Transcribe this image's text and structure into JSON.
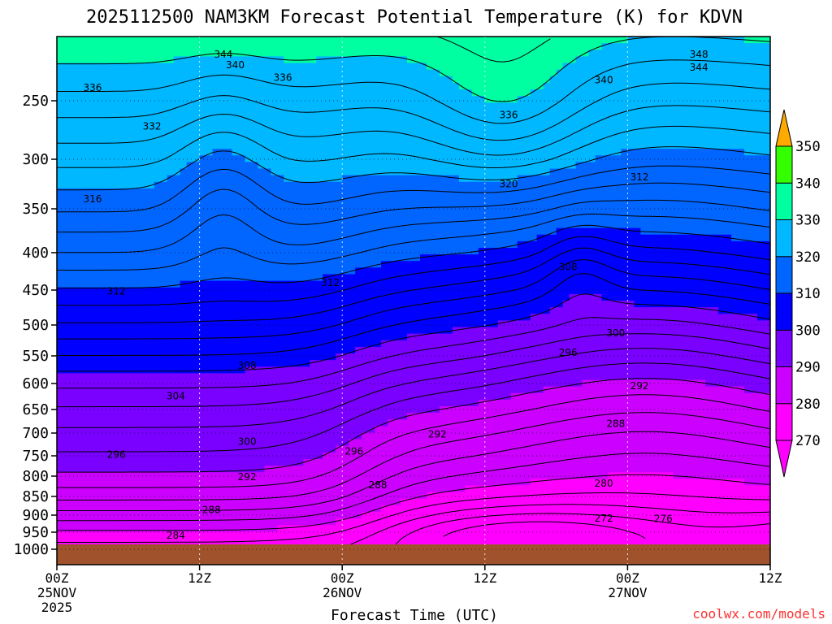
{
  "chart_data": {
    "type": "contour",
    "title": "2025112500 NAM3KM Forecast Potential Temperature (K) for KDVN",
    "xlabel": "Forecast Time (UTC)",
    "ylabel": "",
    "x_hours": [
      0,
      12,
      24,
      36,
      48,
      60
    ],
    "x_tick_labels": [
      [
        "00Z",
        "25NOV",
        "2025"
      ],
      [
        "12Z"
      ],
      [
        "00Z",
        "26NOV"
      ],
      [
        "12Z"
      ],
      [
        "00Z",
        "27NOV"
      ],
      [
        "12Z"
      ]
    ],
    "y_levels_hPa": [
      250,
      300,
      350,
      400,
      450,
      500,
      550,
      600,
      650,
      700,
      750,
      800,
      850,
      900,
      950,
      1000
    ],
    "y_tick_labels": [
      "250",
      "300",
      "350",
      "400",
      "450",
      "500",
      "550",
      "600",
      "650",
      "700",
      "750",
      "800",
      "850",
      "900",
      "950",
      "1000"
    ],
    "ylim_hPa": [
      1050,
      200
    ],
    "grid": true,
    "colorbar": {
      "bounds": [
        270,
        280,
        290,
        300,
        310,
        320,
        330,
        340,
        350
      ],
      "labels": [
        "350",
        "340",
        "330",
        "320",
        "310",
        "300",
        "290",
        "280",
        "270"
      ],
      "colors": [
        "#ff00ff",
        "#cc00ff",
        "#7a00ff",
        "#0000ff",
        "#0066ff",
        "#00b8ff",
        "#00ffa0",
        "#33ff00",
        "#ffff00"
      ],
      "over_color": "#ffaa00",
      "under_color": "#ff00ff"
    },
    "ground_color": "#a0522d",
    "contour_labels": [
      {
        "text": "344",
        "hour": 14,
        "p": 214
      },
      {
        "text": "348",
        "hour": 54,
        "p": 214
      },
      {
        "text": "340",
        "hour": 15,
        "p": 222
      },
      {
        "text": "344",
        "hour": 54,
        "p": 224
      },
      {
        "text": "336",
        "hour": 19,
        "p": 232
      },
      {
        "text": "340",
        "hour": 46,
        "p": 234
      },
      {
        "text": "336",
        "hour": 3,
        "p": 240
      },
      {
        "text": "336",
        "hour": 38,
        "p": 262
      },
      {
        "text": "332",
        "hour": 8,
        "p": 272
      },
      {
        "text": "320",
        "hour": 38,
        "p": 325
      },
      {
        "text": "312",
        "hour": 49,
        "p": 318
      },
      {
        "text": "316",
        "hour": 3,
        "p": 340
      },
      {
        "text": "308",
        "hour": 43,
        "p": 419
      },
      {
        "text": "312",
        "hour": 5,
        "p": 452
      },
      {
        "text": "312",
        "hour": 23,
        "p": 440
      },
      {
        "text": "300",
        "hour": 47,
        "p": 513
      },
      {
        "text": "296",
        "hour": 43,
        "p": 545
      },
      {
        "text": "308",
        "hour": 16,
        "p": 568
      },
      {
        "text": "292",
        "hour": 49,
        "p": 605
      },
      {
        "text": "304",
        "hour": 10,
        "p": 624
      },
      {
        "text": "288",
        "hour": 47,
        "p": 680
      },
      {
        "text": "292",
        "hour": 32,
        "p": 703
      },
      {
        "text": "300",
        "hour": 16,
        "p": 719
      },
      {
        "text": "296",
        "hour": 25,
        "p": 740
      },
      {
        "text": "296",
        "hour": 5,
        "p": 747
      },
      {
        "text": "292",
        "hour": 16,
        "p": 802
      },
      {
        "text": "288",
        "hour": 27,
        "p": 822
      },
      {
        "text": "280",
        "hour": 46,
        "p": 818
      },
      {
        "text": "288",
        "hour": 13,
        "p": 886
      },
      {
        "text": "272",
        "hour": 46,
        "p": 909
      },
      {
        "text": "276",
        "hour": 51,
        "p": 911
      },
      {
        "text": "284",
        "hour": 10,
        "p": 960
      }
    ]
  },
  "credit": "coolwx.com/models"
}
